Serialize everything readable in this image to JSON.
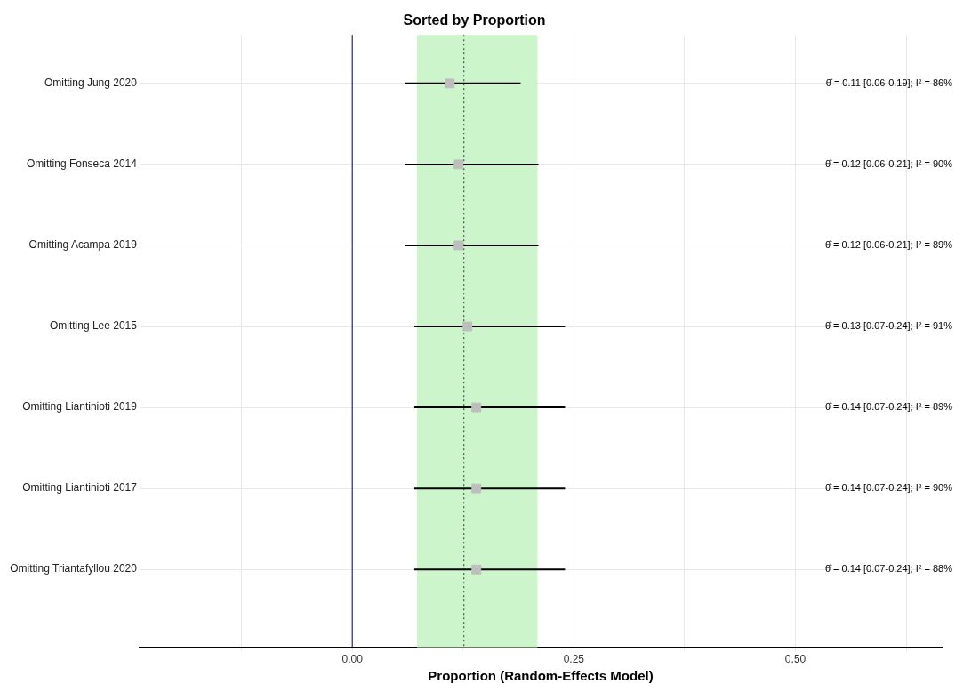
{
  "chart_data": {
    "type": "scatter",
    "orientation": "horizontal",
    "title": "Sorted by Proportion",
    "xlabel": "Proportion (Random-Effects Model)",
    "categories": [
      "Omitting Jung 2020",
      "Omitting Fonseca 2014",
      "Omitting Acampa 2019",
      "Omitting Lee 2015",
      "Omitting Liantinioti 2019",
      "Omitting Liantinioti 2017",
      "Omitting Triantafyllou 2020"
    ],
    "values": [
      0.11,
      0.12,
      0.12,
      0.13,
      0.14,
      0.14,
      0.14
    ],
    "errors": [
      [
        0.06,
        0.19
      ],
      [
        0.06,
        0.21
      ],
      [
        0.06,
        0.21
      ],
      [
        0.07,
        0.24
      ],
      [
        0.07,
        0.24
      ],
      [
        0.07,
        0.24
      ],
      [
        0.07,
        0.24
      ]
    ],
    "annotations": [
      "θ̂ = 0.11 [0.06-0.19]; I² = 86%",
      "θ̂ = 0.12 [0.06-0.21]; I² = 90%",
      "θ̂ = 0.12 [0.06-0.21]; I² = 89%",
      "θ̂ = 0.13 [0.07-0.24]; I² = 91%",
      "θ̂ = 0.14 [0.07-0.24]; I² = 89%",
      "θ̂ = 0.14 [0.07-0.24]; I² = 90%",
      "θ̂ = 0.14 [0.07-0.24]; I² = 88%"
    ],
    "color": "#bebebe",
    "marker": "square",
    "xlim": [
      -0.24,
      0.665
    ],
    "xticks": [
      {
        "value": -0.125,
        "label": null
      },
      {
        "value": 0,
        "label": "0.00"
      },
      {
        "value": 0.125,
        "label": null
      },
      {
        "value": 0.25,
        "label": "0.25"
      },
      {
        "value": 0.375,
        "label": null
      },
      {
        "value": 0.5,
        "label": "0.50"
      },
      {
        "value": 0.625,
        "label": null
      }
    ],
    "bands": [
      {
        "axis": "x",
        "from": 0.073,
        "to": 0.209,
        "color": "#ccf5cc"
      }
    ],
    "ref_lines": [
      {
        "axis": "x",
        "value": 0,
        "color": "#000066",
        "line_style": "solid"
      },
      {
        "axis": "x",
        "value": 0.126,
        "color": "#333333",
        "line_style": "dotted"
      }
    ],
    "grid": true,
    "legend": false
  }
}
